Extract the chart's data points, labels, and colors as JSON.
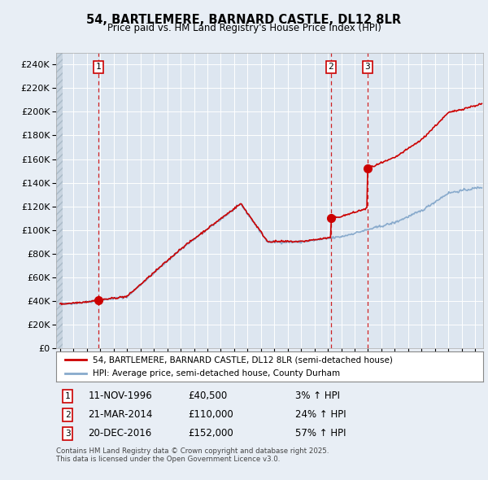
{
  "title": "54, BARTLEMERE, BARNARD CASTLE, DL12 8LR",
  "subtitle": "Price paid vs. HM Land Registry's House Price Index (HPI)",
  "bg_color": "#e8eef5",
  "plot_bg_color": "#dde6f0",
  "grid_color": "#ffffff",
  "red_line_color": "#cc0000",
  "blue_line_color": "#88aacc",
  "dashed_color": "#cc0000",
  "marker_color": "#cc0000",
  "ylim": [
    0,
    250000
  ],
  "yticks": [
    0,
    20000,
    40000,
    60000,
    80000,
    100000,
    120000,
    140000,
    160000,
    180000,
    200000,
    220000,
    240000
  ],
  "xstart": 1993.7,
  "xend": 2025.6,
  "legend_label1": "54, BARTLEMERE, BARNARD CASTLE, DL12 8LR (semi-detached house)",
  "legend_label2": "HPI: Average price, semi-detached house, County Durham",
  "sale1_date": "11-NOV-1996",
  "sale1_price": 40500,
  "sale1_hpi": "3% ↑ HPI",
  "sale1_label": "1",
  "sale1_x": 1996.87,
  "sale2_date": "21-MAR-2014",
  "sale2_price": 110000,
  "sale2_label": "2",
  "sale2_hpi": "24% ↑ HPI",
  "sale2_x": 2014.22,
  "sale3_date": "20-DEC-2016",
  "sale3_price": 152000,
  "sale3_label": "3",
  "sale3_hpi": "57% ↑ HPI",
  "sale3_x": 2016.97,
  "footnote": "Contains HM Land Registry data © Crown copyright and database right 2025.\nThis data is licensed under the Open Government Licence v3.0."
}
